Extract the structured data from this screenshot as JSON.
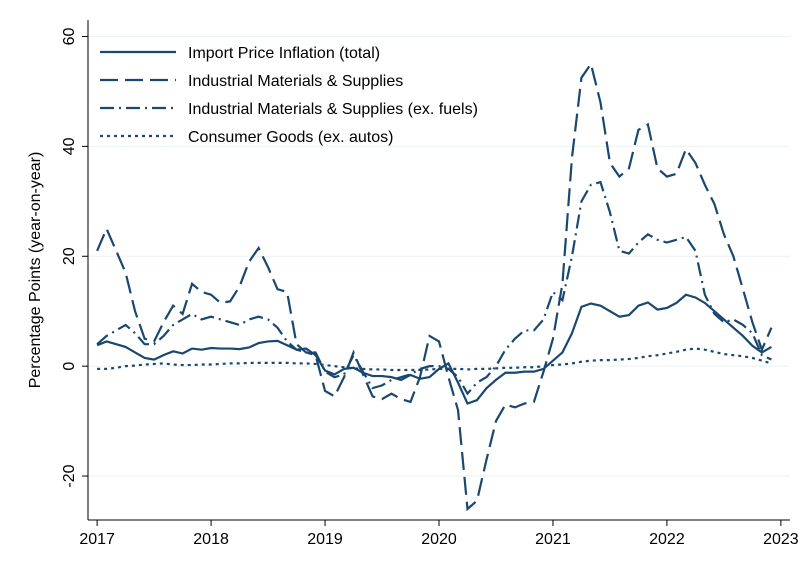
{
  "chart_data": {
    "type": "line",
    "y_label": "Percentage Points (year-on-year)",
    "x": [
      2017,
      2017.083,
      2017.167,
      2017.25,
      2017.333,
      2017.417,
      2017.5,
      2017.583,
      2017.667,
      2017.75,
      2017.833,
      2017.917,
      2018,
      2018.083,
      2018.167,
      2018.25,
      2018.333,
      2018.417,
      2018.5,
      2018.583,
      2018.667,
      2018.75,
      2018.833,
      2018.917,
      2019,
      2019.083,
      2019.167,
      2019.25,
      2019.333,
      2019.417,
      2019.5,
      2019.583,
      2019.667,
      2019.75,
      2019.833,
      2019.917,
      2020,
      2020.083,
      2020.167,
      2020.25,
      2020.333,
      2020.417,
      2020.5,
      2020.583,
      2020.667,
      2020.75,
      2020.833,
      2020.917,
      2021,
      2021.083,
      2021.167,
      2021.25,
      2021.333,
      2021.417,
      2021.5,
      2021.583,
      2021.667,
      2021.75,
      2021.833,
      2021.917,
      2022,
      2022.083,
      2022.167,
      2022.25,
      2022.333,
      2022.417,
      2022.5,
      2022.583,
      2022.667,
      2022.75,
      2022.833,
      2022.917
    ],
    "series": [
      {
        "name": "Import Price Inflation (total)",
        "color": "#1a476f",
        "dash": "solid",
        "values": [
          3.8,
          4.5,
          4.0,
          3.5,
          2.5,
          1.5,
          1.2,
          2.0,
          2.7,
          2.3,
          3.2,
          3.0,
          3.3,
          3.2,
          3.2,
          3.1,
          3.4,
          4.2,
          4.5,
          4.6,
          3.8,
          3.0,
          3.2,
          2.0,
          -0.8,
          -1.5,
          -0.5,
          -0.3,
          -1.2,
          -1.8,
          -1.8,
          -2.0,
          -2.5,
          -1.6,
          -2.3,
          -2.0,
          -0.5,
          0.5,
          -3.0,
          -6.8,
          -6.2,
          -4.0,
          -2.5,
          -1.2,
          -1.2,
          -1.0,
          -1.0,
          -0.5,
          1.0,
          2.5,
          6.0,
          10.8,
          11.4,
          11.0,
          10.0,
          9.0,
          9.3,
          11.0,
          11.6,
          10.3,
          10.6,
          11.5,
          13.0,
          12.5,
          11.5,
          10.0,
          8.5,
          7.0,
          5.5,
          3.7,
          2.5,
          3.5
        ]
      },
      {
        "name": "Industrial Materials & Supplies",
        "color": "#1a476f",
        "dash": "dashed",
        "values": [
          21,
          25,
          21,
          17,
          10,
          5,
          4.5,
          8,
          11,
          9.5,
          15,
          13.5,
          13,
          11.5,
          11.8,
          14.5,
          19,
          21.5,
          18,
          14,
          13.5,
          4,
          2.5,
          2,
          -4.5,
          -5.5,
          -2,
          2.5,
          -1.5,
          -5.5,
          -6,
          -5,
          -6,
          -6.5,
          -2,
          5.5,
          4.5,
          -2,
          -8,
          -26,
          -24.5,
          -17,
          -10,
          -7,
          -7.5,
          -6.8,
          -6.5,
          -1,
          5,
          15,
          38,
          52.5,
          55,
          48,
          37,
          34.5,
          36,
          43,
          44,
          36,
          34.5,
          35,
          39.5,
          37,
          33,
          29.5,
          24,
          20,
          14,
          8,
          3,
          7
        ]
      },
      {
        "name": "Industrial Materials & Supplies (ex. fuels)",
        "color": "#1a476f",
        "dash": "dashdot",
        "values": [
          4,
          5.5,
          6.5,
          7.5,
          6,
          4,
          4,
          5.5,
          7.5,
          8.5,
          9.5,
          8.5,
          9,
          8.5,
          8,
          7.5,
          8.5,
          9,
          8.5,
          7,
          4.5,
          3,
          2.5,
          2.5,
          -1,
          -2,
          -1.5,
          2,
          -1,
          -4,
          -3.5,
          -2.5,
          -2,
          -1.5,
          -0.5,
          0,
          0,
          -0.5,
          -2,
          -5,
          -3,
          -2,
          0,
          3,
          5,
          6.5,
          6.5,
          8.5,
          13.5,
          12,
          20,
          30,
          33,
          33.5,
          28,
          21,
          20.5,
          22.5,
          24,
          23,
          22.5,
          23,
          23.5,
          21,
          13,
          9.5,
          8,
          8.5,
          7.5,
          6,
          2,
          1.2
        ]
      },
      {
        "name": "Consumer Goods (ex. autos)",
        "color": "#1a476f",
        "dash": "dotted",
        "values": [
          -0.5,
          -0.5,
          -0.3,
          0,
          0.1,
          0.3,
          0.4,
          0.5,
          0.3,
          0.2,
          0.2,
          0.3,
          0.3,
          0.4,
          0.5,
          0.5,
          0.6,
          0.6,
          0.6,
          0.6,
          0.6,
          0.5,
          0.5,
          0.4,
          0.2,
          0,
          -0.2,
          -0.4,
          -0.5,
          -0.6,
          -0.6,
          -0.7,
          -0.7,
          -0.7,
          -0.7,
          -0.6,
          -0.5,
          -0.5,
          -0.5,
          -0.6,
          -0.5,
          -0.5,
          -0.4,
          -0.3,
          -0.3,
          -0.2,
          -0.2,
          0,
          0.2,
          0.3,
          0.5,
          0.8,
          1.0,
          1.1,
          1.1,
          1.2,
          1.3,
          1.5,
          1.8,
          2.0,
          2.3,
          2.6,
          3.0,
          3.2,
          3.0,
          2.6,
          2.2,
          2.0,
          1.8,
          1.5,
          1.0,
          0.5
        ]
      }
    ],
    "xlim": [
      2016.92,
      2023.08
    ],
    "xticks": [
      2017,
      2018,
      2019,
      2020,
      2021,
      2022,
      2023
    ],
    "ylim": [
      -28,
      63
    ],
    "yticks": [
      -20,
      0,
      20,
      40,
      60
    ],
    "grid": true,
    "legend": "top-left"
  }
}
